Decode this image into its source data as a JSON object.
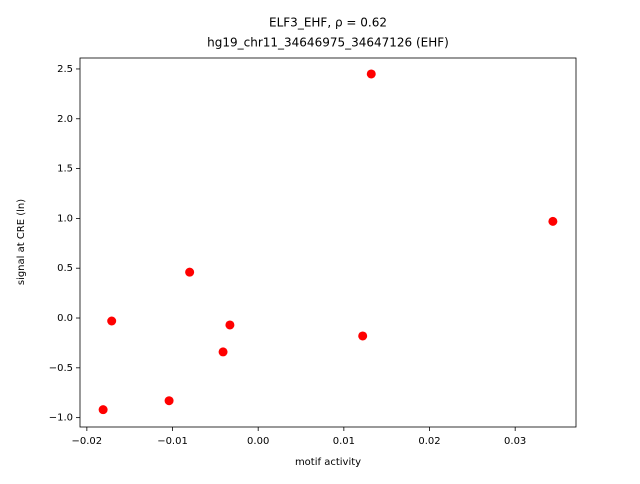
{
  "chart_data": {
    "type": "scatter",
    "title": "ELF3_EHF, ρ = 0.62",
    "subtitle": "hg19_chr11_34646975_34647126 (EHF)",
    "x_label": "motif activity",
    "y_label": "signal at CRE (ln)",
    "color": "#ff0000",
    "x": [
      -0.0181,
      -0.0171,
      -0.0104,
      -0.008,
      -0.0041,
      -0.0033,
      0.0122,
      0.0132,
      0.0344
    ],
    "values": [
      -0.92,
      -0.03,
      -0.83,
      0.46,
      -0.34,
      -0.07,
      -0.18,
      2.45,
      0.97
    ],
    "xlim": [
      -0.0208,
      0.0371
    ],
    "ylim": [
      -1.094,
      2.61
    ],
    "xticks": [
      {
        "value": -0.02,
        "label": "−0.02"
      },
      {
        "value": -0.01,
        "label": "−0.01"
      },
      {
        "value": 0,
        "label": "0.00"
      },
      0.01,
      0.02,
      0.03
    ],
    "yticks": [
      {
        "value": -1,
        "label": "−1.0"
      },
      {
        "value": -0.5,
        "label": "−0.5"
      },
      {
        "value": 0,
        "label": "0.0"
      },
      0.5,
      {
        "value": 1,
        "label": "1.0"
      },
      1.5,
      {
        "value": 2,
        "label": "2.0"
      },
      2.5
    ]
  }
}
